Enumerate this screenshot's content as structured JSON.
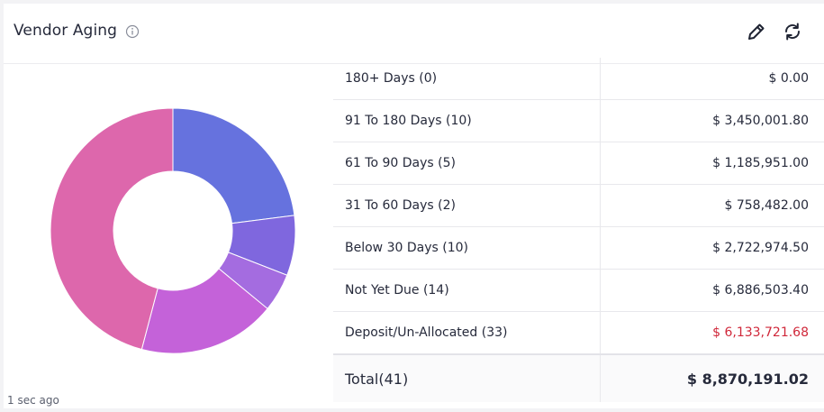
{
  "widget": {
    "title": "Vendor Aging",
    "timestamp": "1 sec ago"
  },
  "icons": {
    "info": "info-circle-icon",
    "edit": "pencil-icon",
    "refresh": "refresh-icon"
  },
  "colors": {
    "negative": "#d0283a"
  },
  "rows": [
    {
      "label": "180+ Days (0)",
      "amount": "$ 0.00"
    },
    {
      "label": "91 To 180 Days (10)",
      "amount": "$ 3,450,001.80"
    },
    {
      "label": "61 To 90 Days (5)",
      "amount": "$ 1,185,951.00"
    },
    {
      "label": "31 To 60 Days (2)",
      "amount": "$ 758,482.00"
    },
    {
      "label": "Below 30 Days (10)",
      "amount": "$ 2,722,974.50"
    },
    {
      "label": "Not Yet Due (14)",
      "amount": "$ 6,886,503.40"
    },
    {
      "label": "Deposit/Un-Allocated (33)",
      "amount": "$ 6,133,721.68",
      "negative": true
    }
  ],
  "total": {
    "label": "Total(41)",
    "amount": "$ 8,870,191.02"
  },
  "chart_data": {
    "type": "pie",
    "categories": [
      "91 To 180 Days",
      "61 To 90 Days",
      "31 To 60 Days",
      "Below 30 Days",
      "Not Yet Due",
      "180+ Days"
    ],
    "values": [
      3450001.8,
      1185951.0,
      758482.0,
      2722974.5,
      6886503.4,
      0
    ],
    "colors": [
      "#6672de",
      "#7f67de",
      "#a46ce0",
      "#c462d9",
      "#dd67ac",
      "#dd67ac"
    ],
    "donut": true
  }
}
